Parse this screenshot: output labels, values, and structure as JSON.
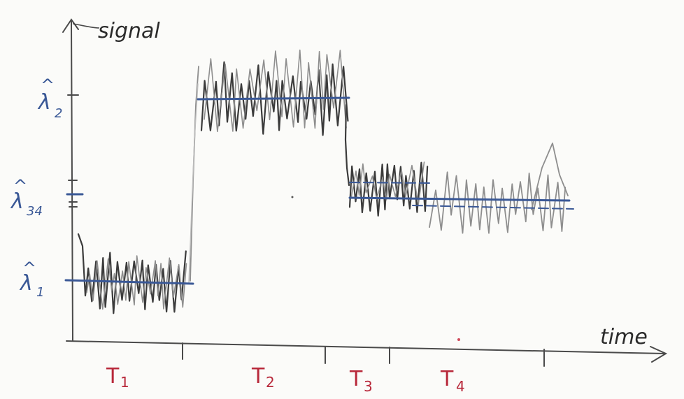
{
  "axes": {
    "y_label": "signal",
    "x_label": "time"
  },
  "levels": [
    {
      "symbol": "λ",
      "subscript": "1",
      "id": "lambda-1"
    },
    {
      "symbol": "λ",
      "subscript": "2",
      "id": "lambda-2"
    },
    {
      "symbol": "λ",
      "subscript": "34",
      "id": "lambda-34"
    }
  ],
  "segments": [
    {
      "symbol": "T",
      "subscript": "1"
    },
    {
      "symbol": "T",
      "subscript": "2"
    },
    {
      "symbol": "T",
      "subscript": "3"
    },
    {
      "symbol": "T",
      "subscript": "4"
    }
  ],
  "colors": {
    "signal": "#3b3b3b",
    "signal_light": "#8e8e8e",
    "level_line": "#3a5896",
    "segment_label": "#b8283a",
    "axis": "#4a4a4a"
  }
}
